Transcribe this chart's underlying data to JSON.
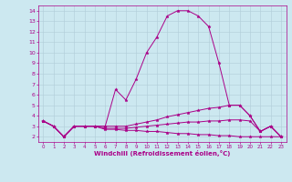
{
  "xlabel": "Windchill (Refroidissement éolien,°C)",
  "ylabel": "",
  "xlim": [
    -0.5,
    23.5
  ],
  "ylim": [
    1.5,
    14.5
  ],
  "yticks": [
    2,
    3,
    4,
    5,
    6,
    7,
    8,
    9,
    10,
    11,
    12,
    13,
    14
  ],
  "xticks": [
    0,
    1,
    2,
    3,
    4,
    5,
    6,
    7,
    8,
    9,
    10,
    11,
    12,
    13,
    14,
    15,
    16,
    17,
    18,
    19,
    20,
    21,
    22,
    23
  ],
  "bg_color": "#cce8f0",
  "grid_color": "#b0ccd8",
  "line_color": "#aa0088",
  "series": [
    [
      3.5,
      3.0,
      2.0,
      3.0,
      3.0,
      3.0,
      3.0,
      6.5,
      5.5,
      7.5,
      10.0,
      11.5,
      13.5,
      14.0,
      14.0,
      13.5,
      12.5,
      9.0,
      5.0,
      5.0,
      4.0,
      2.5,
      3.0,
      2.0
    ],
    [
      3.5,
      3.0,
      2.0,
      3.0,
      3.0,
      3.0,
      3.0,
      3.0,
      3.0,
      3.2,
      3.4,
      3.6,
      3.9,
      4.1,
      4.3,
      4.5,
      4.7,
      4.8,
      5.0,
      5.0,
      4.0,
      2.5,
      3.0,
      2.0
    ],
    [
      3.5,
      3.0,
      2.0,
      3.0,
      3.0,
      3.0,
      2.8,
      2.8,
      2.8,
      2.9,
      3.0,
      3.1,
      3.2,
      3.3,
      3.4,
      3.4,
      3.5,
      3.5,
      3.6,
      3.6,
      3.5,
      2.5,
      3.0,
      2.0
    ],
    [
      3.5,
      3.0,
      2.0,
      3.0,
      3.0,
      3.0,
      2.7,
      2.7,
      2.6,
      2.6,
      2.5,
      2.5,
      2.4,
      2.3,
      2.3,
      2.2,
      2.2,
      2.1,
      2.1,
      2.0,
      2.0,
      2.0,
      2.0,
      2.0
    ]
  ]
}
